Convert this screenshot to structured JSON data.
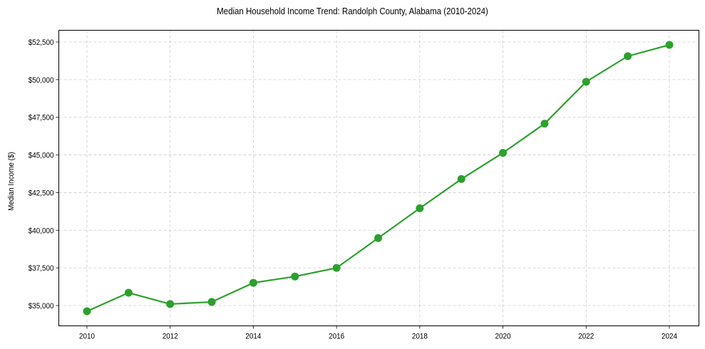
{
  "chart_data": {
    "type": "line",
    "title": "Median Household Income Trend: Randolph County, Alabama (2010-2024)",
    "xlabel": "",
    "ylabel": "Median Income ($)",
    "x": [
      2010,
      2011,
      2012,
      2013,
      2014,
      2015,
      2016,
      2017,
      2018,
      2019,
      2020,
      2021,
      2022,
      2023,
      2024
    ],
    "series": [
      {
        "name": "Median Household Income",
        "color": "#2ca02c",
        "values": [
          34620,
          35850,
          35100,
          35240,
          36510,
          36930,
          37500,
          39480,
          41460,
          43400,
          45140,
          47080,
          49860,
          51560,
          52310
        ]
      }
    ],
    "x_ticks": [
      "2010",
      "2012",
      "2014",
      "2016",
      "2018",
      "2020",
      "2022",
      "2024"
    ],
    "y_ticks": [
      "$35,000",
      "$37,500",
      "$40,000",
      "$42,500",
      "$45,000",
      "$47,500",
      "$50,000",
      "$52,500"
    ],
    "y_tick_values": [
      35000,
      37500,
      40000,
      42500,
      45000,
      47500,
      50000,
      52500
    ],
    "xlim": [
      2009.3,
      2024.7
    ],
    "ylim": [
      33770,
      53270
    ],
    "grid": true,
    "grid_style": "dashed",
    "legend": "none"
  }
}
